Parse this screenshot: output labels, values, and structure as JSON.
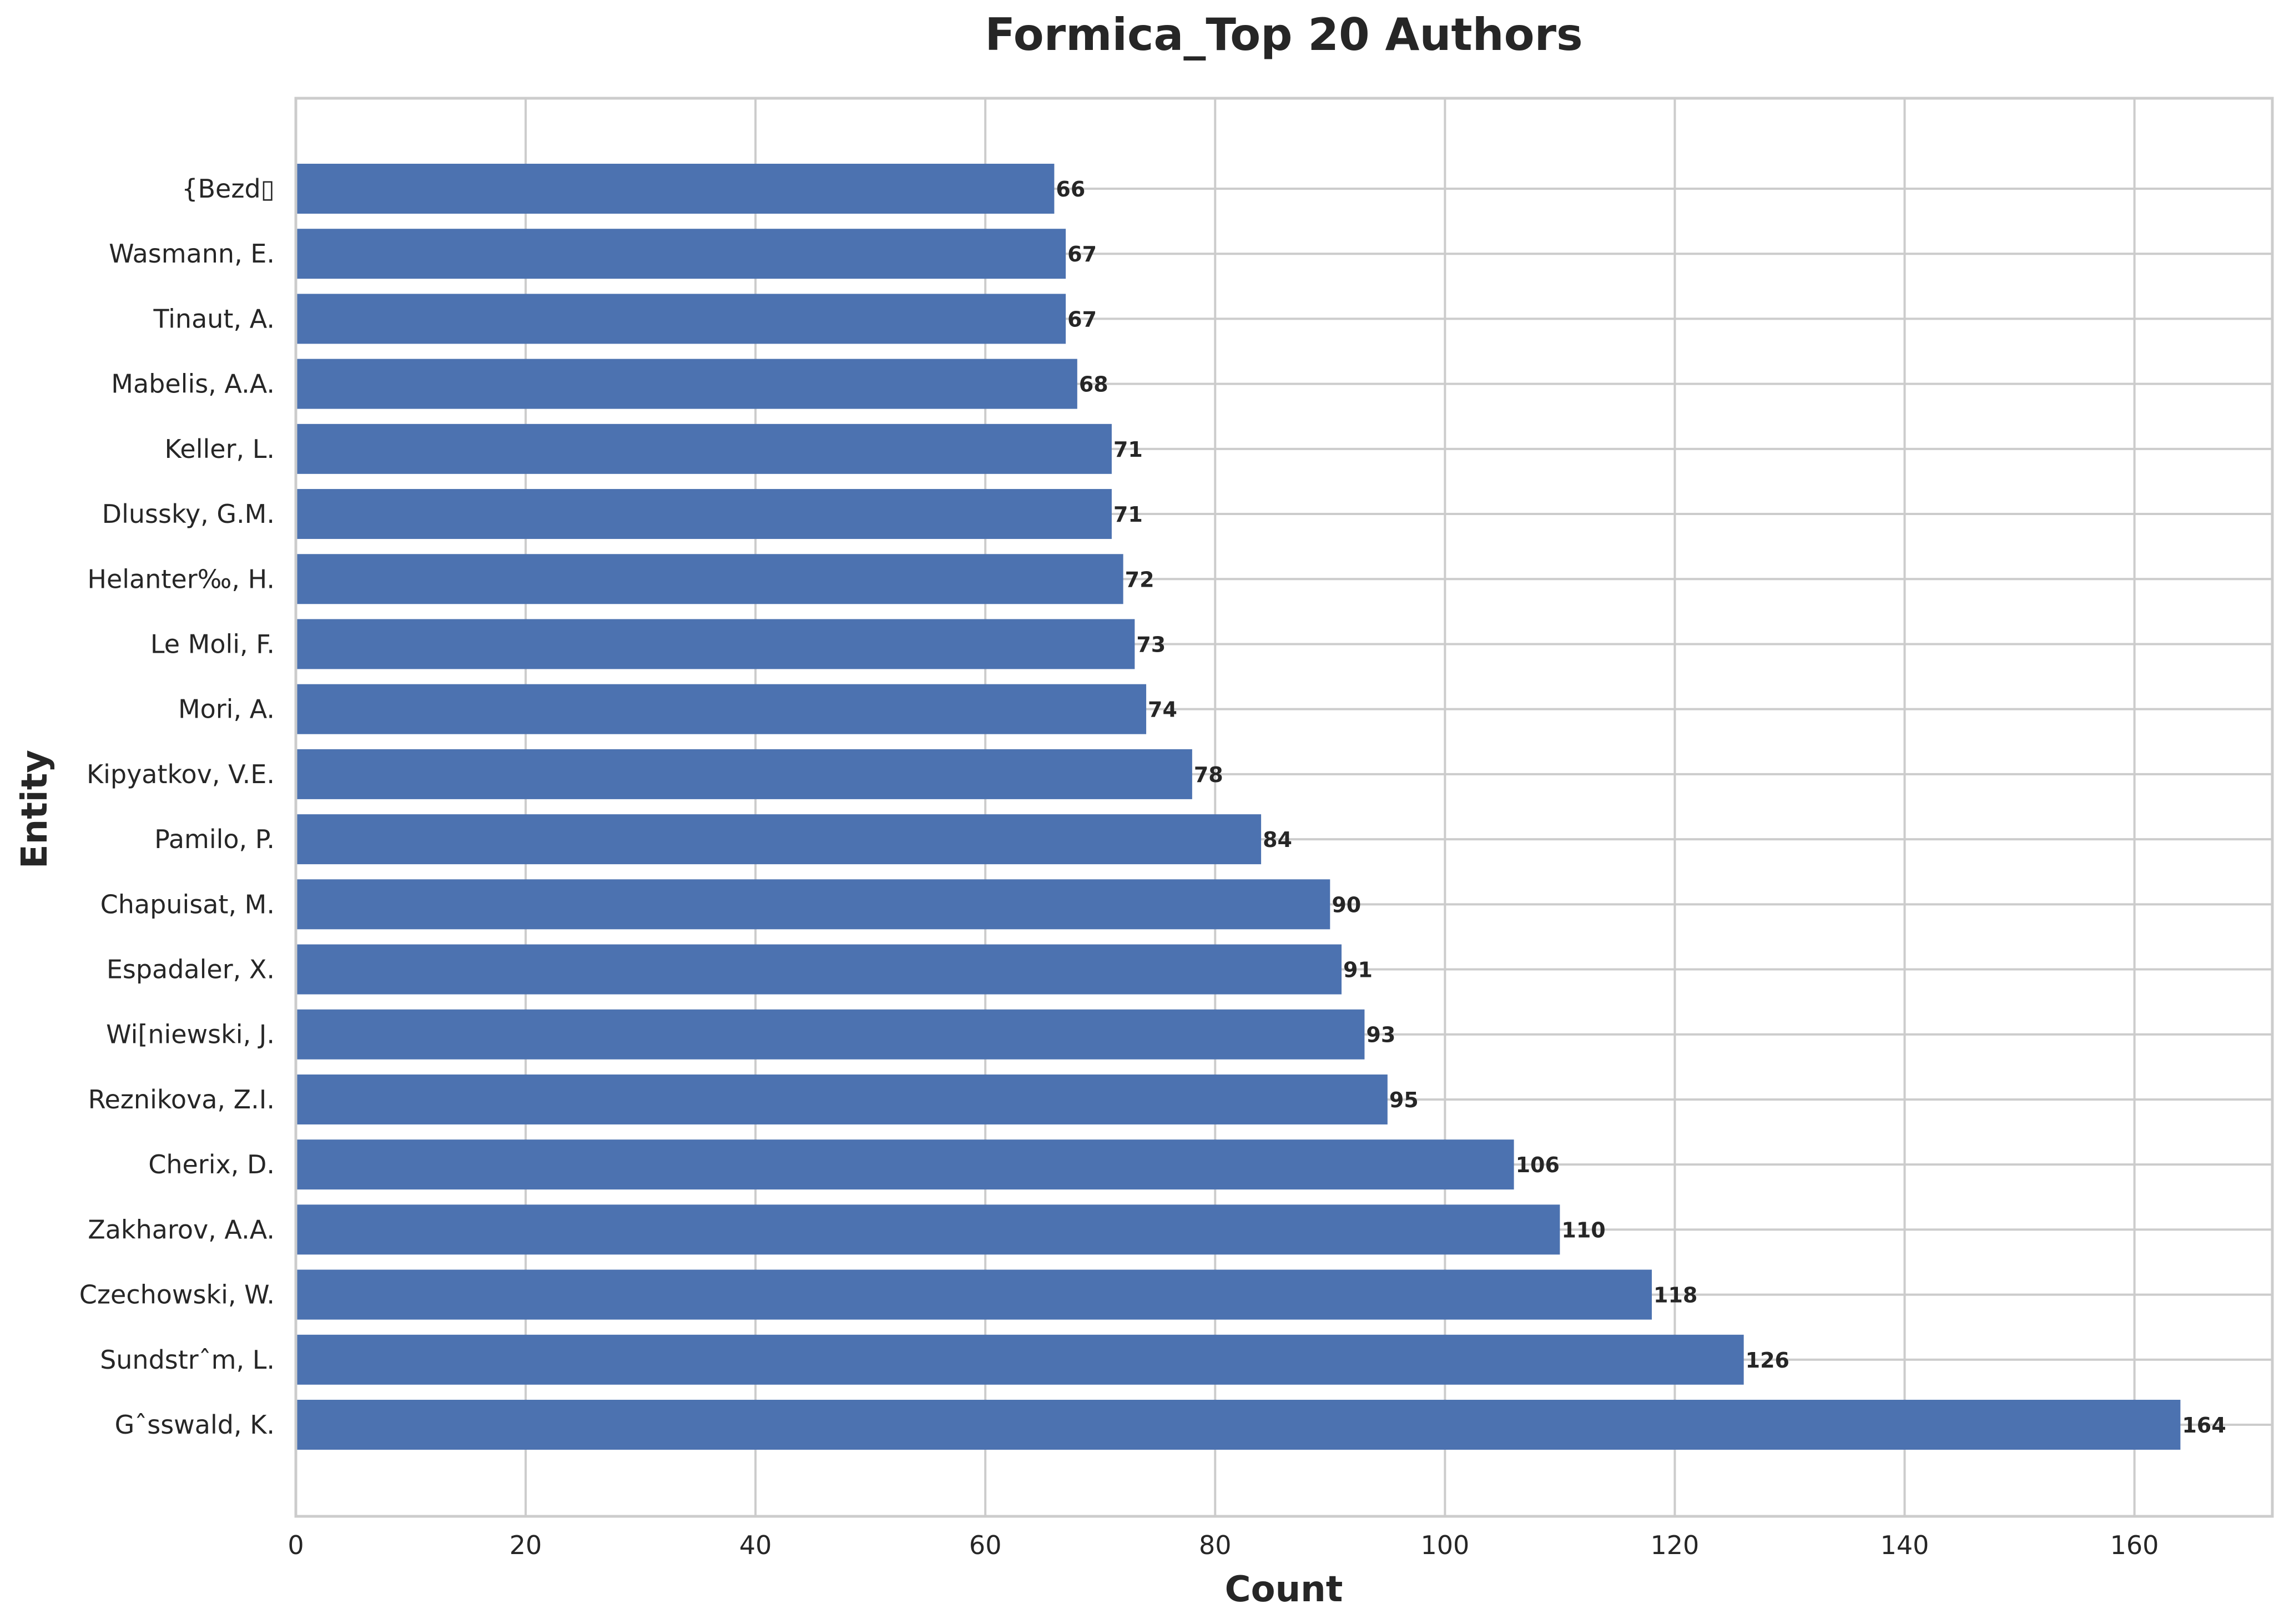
{
  "chart_data": {
    "type": "bar",
    "orientation": "horizontal",
    "title": "Formica_Top 20 Authors",
    "xlabel": "Count",
    "ylabel": "Entity",
    "xlim": [
      0,
      172
    ],
    "x_ticks": [
      0,
      20,
      40,
      60,
      80,
      100,
      120,
      140,
      160
    ],
    "grid": true,
    "bar_color": "#4c72b0",
    "categories": [
      "Gˆsswald, K.",
      "Sundstrˆm, L.",
      "Czechowski, W.",
      "Zakharov, A.A.",
      "Cherix, D.",
      "Reznikova, Z.I.",
      "Wi[niewski, J.",
      "Espadaler, X.",
      "Chapuisat, M.",
      "Pamilo, P.",
      "Kipyatkov, V.E.",
      "Mori, A.",
      "Le Moli, F.",
      "Helanter‰, H.",
      "Dlussky, G.M.",
      "Keller, L.",
      "Mabelis, A.A.",
      "Tinaut, A.",
      "Wasmann, E.",
      "{Bezd▯"
    ],
    "values": [
      164,
      126,
      118,
      110,
      106,
      95,
      93,
      91,
      90,
      84,
      78,
      74,
      73,
      72,
      71,
      71,
      68,
      67,
      67,
      66
    ]
  }
}
